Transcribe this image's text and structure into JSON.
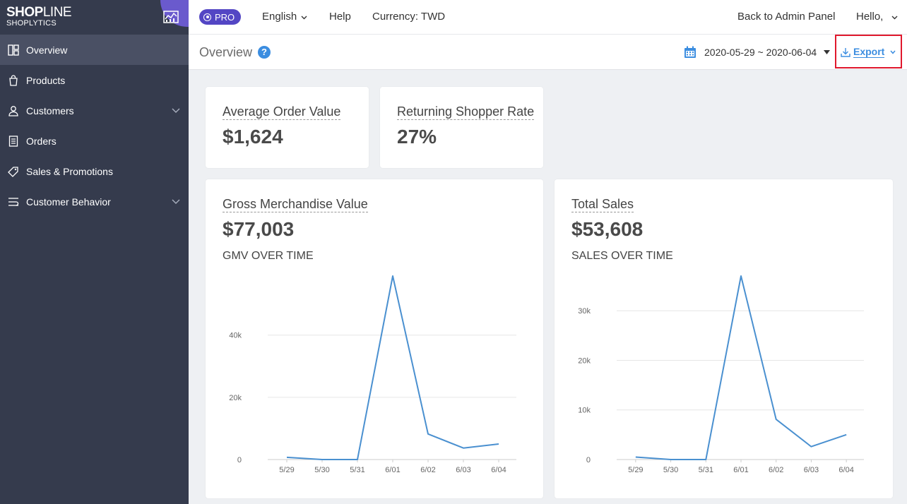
{
  "brand": {
    "name_bold": "SHOP",
    "name_rest": "LINE",
    "sub": "SHOPLYTICS"
  },
  "sidebar": {
    "items": [
      {
        "label": "Overview",
        "icon": "layout-icon",
        "active": true
      },
      {
        "label": "Products",
        "icon": "bag-icon"
      },
      {
        "label": "Customers",
        "icon": "person-icon",
        "expandable": true
      },
      {
        "label": "Orders",
        "icon": "clipboard-icon"
      },
      {
        "label": "Sales & Promotions",
        "icon": "tag-icon"
      },
      {
        "label": "Customer Behavior",
        "icon": "flow-icon",
        "expandable": true
      }
    ]
  },
  "topbar": {
    "pro_label": "PRO",
    "language": "English",
    "help": "Help",
    "currency": "Currency: TWD",
    "back": "Back to Admin Panel",
    "hello": "Hello,"
  },
  "subheader": {
    "title": "Overview",
    "help_icon": "?",
    "date_range": "2020-05-29 ~ 2020-06-04",
    "export_label": "Export"
  },
  "metrics": {
    "aov": {
      "title": "Average Order Value",
      "value": "$1,624"
    },
    "returning": {
      "title": "Returning Shopper Rate",
      "value": "27%"
    },
    "gmv": {
      "title": "Gross Merchandise Value",
      "value": "$77,003",
      "caption": "GMV OVER TIME"
    },
    "sales": {
      "title": "Total Sales",
      "value": "$53,608",
      "caption": "SALES OVER TIME"
    }
  },
  "colors": {
    "sidebar": "#353b4d",
    "accent": "#3b8de0",
    "pro": "#5346c4",
    "highlight": "#e0182d",
    "line": "#4a90d0"
  },
  "chart_data": [
    {
      "type": "line",
      "title": "GMV OVER TIME",
      "categories": [
        "5/29",
        "5/30",
        "5/31",
        "6/01",
        "6/02",
        "6/03",
        "6/04"
      ],
      "values": [
        700,
        0,
        0,
        59000,
        8200,
        3700,
        5000
      ],
      "ylim": [
        0,
        59000
      ],
      "yticks": [
        0,
        20000,
        40000
      ],
      "ytick_labels": [
        "0",
        "20k",
        "40k"
      ],
      "grid": true
    },
    {
      "type": "line",
      "title": "SALES OVER TIME",
      "categories": [
        "5/29",
        "5/30",
        "5/31",
        "6/01",
        "6/02",
        "6/03",
        "6/04"
      ],
      "values": [
        500,
        0,
        0,
        37000,
        8100,
        2600,
        5000
      ],
      "ylim": [
        0,
        37000
      ],
      "yticks": [
        0,
        10000,
        20000,
        30000
      ],
      "ytick_labels": [
        "0",
        "10k",
        "20k",
        "30k"
      ],
      "grid": true
    }
  ]
}
